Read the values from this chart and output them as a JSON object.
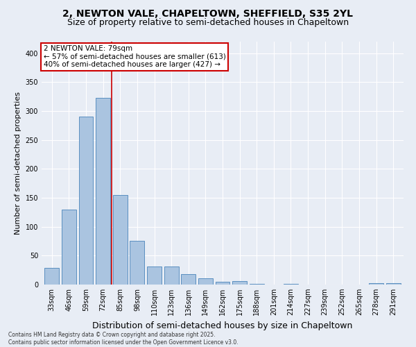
{
  "title_line1": "2, NEWTON VALE, CHAPELTOWN, SHEFFIELD, S35 2YL",
  "title_line2": "Size of property relative to semi-detached houses in Chapeltown",
  "xlabel": "Distribution of semi-detached houses by size in Chapeltown",
  "ylabel": "Number of semi-detached properties",
  "categories": [
    "33sqm",
    "46sqm",
    "59sqm",
    "72sqm",
    "85sqm",
    "98sqm",
    "110sqm",
    "123sqm",
    "136sqm",
    "149sqm",
    "162sqm",
    "175sqm",
    "188sqm",
    "201sqm",
    "214sqm",
    "227sqm",
    "239sqm",
    "252sqm",
    "265sqm",
    "278sqm",
    "291sqm"
  ],
  "values": [
    29,
    130,
    290,
    323,
    155,
    76,
    31,
    31,
    18,
    11,
    5,
    6,
    1,
    0,
    1,
    0,
    0,
    0,
    0,
    2,
    2
  ],
  "bar_color": "#aac4e0",
  "bar_edge_color": "#5a8fc0",
  "property_label": "2 NEWTON VALE: 79sqm",
  "pct_smaller": 57,
  "count_smaller": 613,
  "pct_larger": 40,
  "count_larger": 427,
  "vline_x": 3.5,
  "vline_color": "#cc0000",
  "annotation_box_color": "#cc0000",
  "ylim": [
    0,
    420
  ],
  "yticks": [
    0,
    50,
    100,
    150,
    200,
    250,
    300,
    350,
    400
  ],
  "background_color": "#e8edf5",
  "plot_bg_color": "#e8edf5",
  "footer_line1": "Contains HM Land Registry data © Crown copyright and database right 2025.",
  "footer_line2": "Contains public sector information licensed under the Open Government Licence v3.0.",
  "title_fontsize": 10,
  "subtitle_fontsize": 9,
  "tick_fontsize": 7,
  "ylabel_fontsize": 8,
  "xlabel_fontsize": 9,
  "annotation_fontsize": 7.5
}
